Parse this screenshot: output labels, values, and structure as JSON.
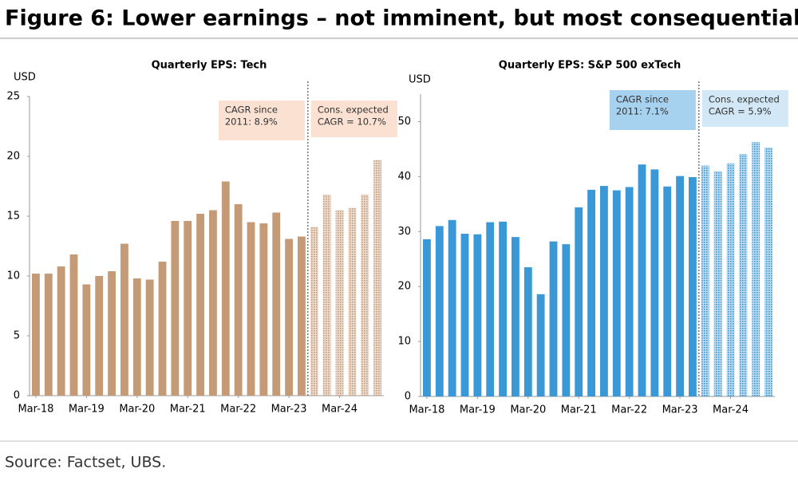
{
  "title": "Figure 6: Lower earnings – not imminent, but most consequential",
  "source": "Source: Factset, UBS.",
  "chart_data": [
    {
      "type": "bar",
      "title": "Quarterly EPS: Tech",
      "y_label": "USD",
      "categories": [
        "Mar-18",
        null,
        null,
        null,
        "Mar-19",
        null,
        null,
        null,
        "Mar-20",
        null,
        null,
        null,
        "Mar-21",
        null,
        null,
        null,
        "Mar-22",
        null,
        null,
        null,
        "Mar-23",
        null,
        null,
        null,
        "Mar-24",
        null,
        null,
        null
      ],
      "values": [
        10.2,
        10.2,
        10.8,
        11.8,
        9.3,
        10.0,
        10.4,
        12.7,
        9.8,
        9.7,
        11.2,
        14.6,
        14.6,
        15.2,
        15.5,
        17.9,
        16.0,
        14.5,
        14.4,
        15.3,
        13.1,
        13.3,
        14.1,
        16.8,
        15.5,
        15.7,
        16.8,
        19.7
      ],
      "bar_styles": [
        "solid",
        "solid",
        "solid",
        "solid",
        "solid",
        "solid",
        "solid",
        "solid",
        "solid",
        "solid",
        "solid",
        "solid",
        "solid",
        "solid",
        "solid",
        "solid",
        "solid",
        "solid",
        "solid",
        "solid",
        "solid",
        "solid",
        "dotted",
        "dotted",
        "dotted",
        "dotted",
        "dotted",
        "dotted"
      ],
      "color": "#c49b76",
      "ylim": [
        0,
        25
      ],
      "yticks": [
        0,
        5,
        10,
        15,
        20,
        25
      ],
      "annotations": [
        {
          "lines": [
            "CAGR since",
            "2011: 8.9%"
          ],
          "color": "#fbe1d2"
        },
        {
          "lines": [
            "Cons. expected",
            "CAGR = 10.7%"
          ],
          "color": "#fbe1d2"
        }
      ]
    },
    {
      "type": "bar",
      "title": "Quarterly EPS: S&P 500 exTech",
      "y_label": "USD",
      "categories": [
        "Mar-18",
        null,
        null,
        null,
        "Mar-19",
        null,
        null,
        null,
        "Mar-20",
        null,
        null,
        null,
        "Mar-21",
        null,
        null,
        null,
        "Mar-22",
        null,
        null,
        null,
        "Mar-23",
        null,
        null,
        null,
        "Mar-24",
        null,
        null,
        null
      ],
      "values": [
        28.6,
        31.0,
        32.1,
        29.6,
        29.5,
        31.7,
        31.8,
        29.0,
        23.5,
        18.6,
        28.2,
        27.7,
        34.4,
        37.6,
        38.3,
        37.5,
        38.1,
        42.2,
        41.3,
        38.2,
        40.1,
        39.9,
        42.0,
        41.0,
        42.4,
        44.1,
        46.3,
        45.3
      ],
      "bar_styles": [
        "solid",
        "solid",
        "solid",
        "solid",
        "solid",
        "solid",
        "solid",
        "solid",
        "solid",
        "solid",
        "solid",
        "solid",
        "solid",
        "solid",
        "solid",
        "solid",
        "solid",
        "solid",
        "solid",
        "solid",
        "solid",
        "solid",
        "dotted",
        "dotted",
        "dotted",
        "dotted",
        "dotted",
        "dotted"
      ],
      "color": "#3a98d6",
      "ylim": [
        0,
        55
      ],
      "yticks": [
        0,
        10,
        20,
        30,
        40,
        50
      ],
      "annotations": [
        {
          "lines": [
            "CAGR since",
            "2011: 7.1%"
          ],
          "color": "#a6d2ef"
        },
        {
          "lines": [
            "Cons. expected",
            "CAGR = 5.9%"
          ],
          "color": "#d2e8f6"
        }
      ]
    }
  ]
}
